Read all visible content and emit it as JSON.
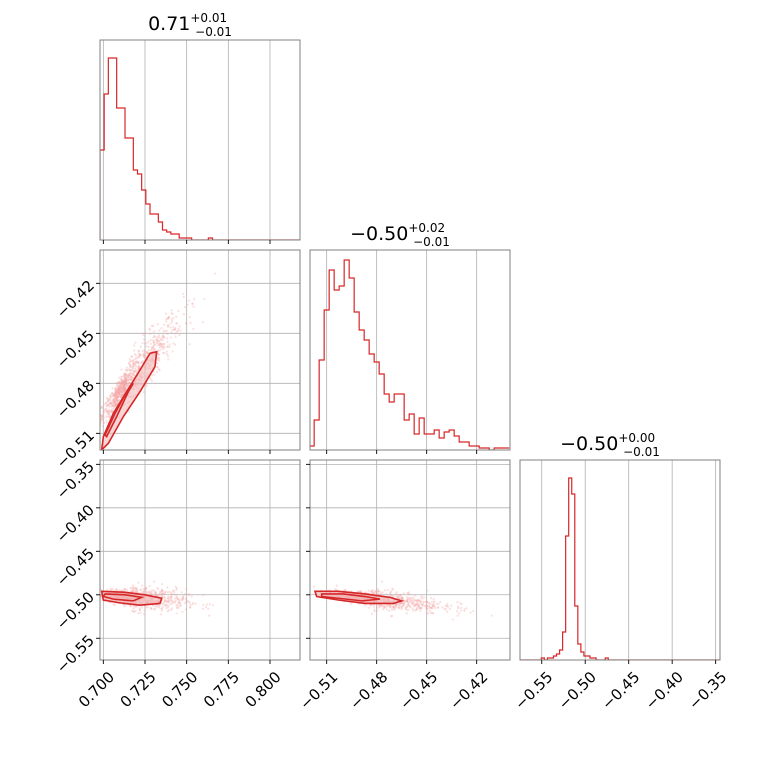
{
  "figure": {
    "style": {
      "line_color": "#d62728",
      "fill_color": "#f2b5b5",
      "scatter_color": "#f4a6a6",
      "grid_color": "#b0b0b0",
      "frame_color": "#808080"
    }
  },
  "chart_data": [
    {
      "type": "histogram",
      "panel": "row0-col0",
      "title_main": "0.71",
      "title_sup": "+0.01",
      "title_sub": "−0.01",
      "xlim": [
        0.698,
        0.818
      ],
      "xgrid": [
        0.7,
        0.725,
        0.75,
        0.775,
        0.8
      ],
      "bin_edges_start": 0.698,
      "bin_width": 0.0025,
      "counts": [
        45,
        73,
        91,
        91,
        66,
        66,
        51,
        51,
        35,
        33,
        25,
        18,
        13,
        13,
        9,
        5,
        4,
        3,
        3,
        1,
        1,
        1,
        0,
        0,
        0,
        0,
        1,
        0,
        0,
        0,
        0,
        0,
        0,
        0,
        0,
        0,
        0,
        0,
        0,
        0,
        0,
        0,
        0,
        0,
        0,
        0,
        0,
        0,
        0
      ],
      "ylim": [
        0,
        100
      ]
    },
    {
      "type": "scatter_contour",
      "panel": "row1-col0",
      "xlim": [
        0.698,
        0.818
      ],
      "ylim": [
        -0.52,
        -0.4
      ],
      "xgrid": [
        0.7,
        0.725,
        0.75,
        0.775,
        0.8
      ],
      "yticks": [
        -0.42,
        -0.45,
        -0.48,
        -0.51
      ],
      "ytick_labels": [
        "−0.42",
        "−0.45",
        "−0.48",
        "−0.51"
      ],
      "scatter_center": [
        0.714,
        -0.48
      ],
      "scatter_spread": [
        0.012,
        0.017
      ],
      "scatter_corr": 0.93,
      "contours": [
        [
          [
            0.7,
            -0.512
          ],
          [
            0.706,
            -0.498
          ],
          [
            0.714,
            -0.485
          ],
          [
            0.722,
            -0.472
          ],
          [
            0.728,
            -0.462
          ],
          [
            0.732,
            -0.461
          ],
          [
            0.731,
            -0.47
          ],
          [
            0.722,
            -0.485
          ],
          [
            0.712,
            -0.5
          ],
          [
            0.703,
            -0.516
          ],
          [
            0.699,
            -0.52
          ]
        ],
        [
          [
            0.701,
            -0.511
          ],
          [
            0.707,
            -0.498
          ],
          [
            0.713,
            -0.487
          ],
          [
            0.718,
            -0.48
          ],
          [
            0.715,
            -0.485
          ],
          [
            0.708,
            -0.5
          ],
          [
            0.702,
            -0.512
          ]
        ]
      ]
    },
    {
      "type": "histogram",
      "panel": "row1-col1",
      "title_main": "−0.50",
      "title_sup": "+0.02",
      "title_sub": "−0.01",
      "xlim": [
        -0.52,
        -0.4
      ],
      "xgrid": [
        -0.51,
        -0.48,
        -0.45,
        -0.42
      ],
      "bin_edges_start": -0.5205,
      "bin_width": 0.003,
      "counts": [
        2,
        15,
        45,
        70,
        90,
        80,
        82,
        95,
        86,
        69,
        60,
        55,
        48,
        44,
        38,
        28,
        24,
        28,
        28,
        15,
        18,
        8,
        16,
        8,
        8,
        10,
        6,
        9,
        10,
        7,
        4,
        4,
        2,
        2,
        1,
        1,
        0,
        1,
        1,
        1
      ],
      "ylim": [
        0,
        100
      ]
    },
    {
      "type": "scatter_contour",
      "panel": "row2-col0",
      "xlim": [
        0.698,
        0.818
      ],
      "ylim": [
        -0.575,
        -0.345
      ],
      "xgrid": [
        0.7,
        0.725,
        0.75,
        0.775,
        0.8
      ],
      "yticks": [
        -0.35,
        -0.4,
        -0.45,
        -0.5,
        -0.55
      ],
      "ytick_labels": [
        "−0.35",
        "−0.40",
        "−0.45",
        "−0.50",
        "−0.55"
      ],
      "xticks": [
        0.7,
        0.725,
        0.75,
        0.775,
        0.8
      ],
      "xtick_labels": [
        "0.700",
        "0.725",
        "0.750",
        "0.775",
        "0.800"
      ],
      "scatter_center": [
        0.716,
        -0.503
      ],
      "scatter_spread": [
        0.012,
        0.006
      ],
      "scatter_corr": -0.3,
      "contours": [
        [
          [
            0.699,
            -0.496
          ],
          [
            0.712,
            -0.497
          ],
          [
            0.725,
            -0.5
          ],
          [
            0.735,
            -0.504
          ],
          [
            0.734,
            -0.51
          ],
          [
            0.722,
            -0.512
          ],
          [
            0.709,
            -0.509
          ],
          [
            0.7,
            -0.506
          ]
        ],
        [
          [
            0.701,
            -0.499
          ],
          [
            0.713,
            -0.5
          ],
          [
            0.723,
            -0.503
          ],
          [
            0.718,
            -0.507
          ],
          [
            0.706,
            -0.505
          ],
          [
            0.7,
            -0.502
          ]
        ]
      ]
    },
    {
      "type": "scatter_contour",
      "panel": "row2-col1",
      "xlim": [
        -0.52,
        -0.4
      ],
      "ylim": [
        -0.575,
        -0.345
      ],
      "xgrid": [
        -0.51,
        -0.48,
        -0.45,
        -0.42
      ],
      "yticks": [
        -0.35,
        -0.4,
        -0.45,
        -0.5,
        -0.55
      ],
      "xticks": [
        -0.51,
        -0.48,
        -0.45,
        -0.42
      ],
      "xtick_labels": [
        "−0.51",
        "−0.48",
        "−0.45",
        "−0.42"
      ],
      "scatter_center": [
        -0.485,
        -0.504
      ],
      "scatter_spread": [
        0.016,
        0.006
      ],
      "scatter_corr": -0.6,
      "contours": [
        [
          [
            -0.517,
            -0.496
          ],
          [
            -0.503,
            -0.496
          ],
          [
            -0.487,
            -0.499
          ],
          [
            -0.472,
            -0.503
          ],
          [
            -0.465,
            -0.507
          ],
          [
            -0.47,
            -0.51
          ],
          [
            -0.487,
            -0.51
          ],
          [
            -0.503,
            -0.506
          ],
          [
            -0.516,
            -0.502
          ]
        ],
        [
          [
            -0.513,
            -0.499
          ],
          [
            -0.5,
            -0.499
          ],
          [
            -0.487,
            -0.502
          ],
          [
            -0.478,
            -0.505
          ],
          [
            -0.489,
            -0.507
          ],
          [
            -0.503,
            -0.504
          ],
          [
            -0.513,
            -0.502
          ]
        ]
      ]
    },
    {
      "type": "histogram",
      "panel": "row2-col2",
      "title_main": "−0.50",
      "title_sup": "+0.00",
      "title_sub": "−0.01",
      "xlim": [
        -0.575,
        -0.345
      ],
      "xticks": [
        -0.55,
        -0.5,
        -0.45,
        -0.4,
        -0.35
      ],
      "xtick_labels": [
        "−0.55",
        "−0.50",
        "−0.45",
        "−0.40",
        "−0.35"
      ],
      "bin_edges_start": -0.575,
      "bin_width": 0.0035,
      "counts": [
        0,
        0,
        0,
        0,
        0,
        0,
        0,
        1,
        0,
        1,
        1,
        2,
        3,
        5,
        14,
        62,
        91,
        83,
        27,
        8,
        4,
        2,
        2,
        1,
        1,
        0,
        0,
        0,
        1,
        0,
        0,
        0,
        0,
        0,
        0,
        0,
        0,
        0,
        0,
        0,
        0,
        0,
        0,
        0,
        0,
        0,
        0,
        0,
        0,
        0,
        0,
        0,
        0,
        0,
        0,
        0,
        0,
        0,
        0,
        0,
        0,
        0,
        0,
        0,
        0,
        0,
        0
      ],
      "ylim": [
        0,
        100
      ]
    }
  ]
}
